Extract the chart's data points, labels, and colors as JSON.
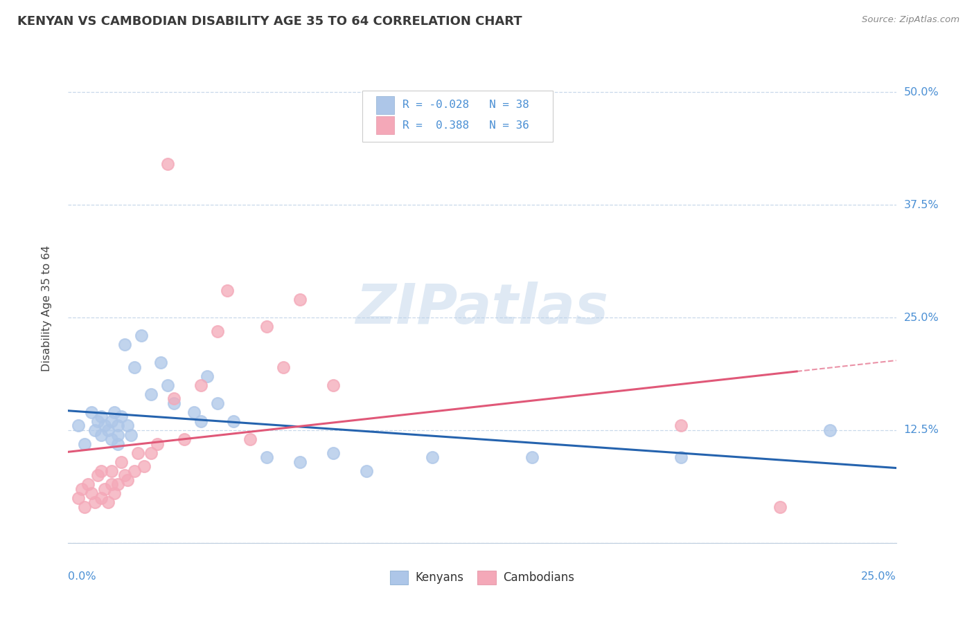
{
  "title": "KENYAN VS CAMBODIAN DISABILITY AGE 35 TO 64 CORRELATION CHART",
  "source": "Source: ZipAtlas.com",
  "ylabel": "Disability Age 35 to 64",
  "xlim": [
    0.0,
    0.25
  ],
  "ylim": [
    0.0,
    0.52
  ],
  "yticks": [
    0.0,
    0.125,
    0.25,
    0.375,
    0.5
  ],
  "ytick_labels": [
    "",
    "12.5%",
    "25.0%",
    "37.5%",
    "50.0%"
  ],
  "kenyan_R": -0.028,
  "kenyan_N": 38,
  "cambodian_R": 0.388,
  "cambodian_N": 36,
  "kenyan_color": "#adc6e8",
  "cambodian_color": "#f4a8b8",
  "kenyan_line_color": "#2563ae",
  "cambodian_line_color": "#e05878",
  "background_color": "#ffffff",
  "grid_color": "#c8d8ea",
  "title_color": "#3a3a3a",
  "axis_label_color": "#4a8fd4",
  "watermark": "ZIPatlas",
  "kenyan_x": [
    0.003,
    0.005,
    0.007,
    0.008,
    0.009,
    0.01,
    0.01,
    0.011,
    0.012,
    0.013,
    0.013,
    0.014,
    0.015,
    0.015,
    0.015,
    0.016,
    0.017,
    0.018,
    0.019,
    0.02,
    0.022,
    0.025,
    0.028,
    0.03,
    0.032,
    0.038,
    0.04,
    0.042,
    0.045,
    0.05,
    0.06,
    0.07,
    0.08,
    0.09,
    0.11,
    0.14,
    0.185,
    0.23
  ],
  "kenyan_y": [
    0.13,
    0.11,
    0.145,
    0.125,
    0.135,
    0.12,
    0.14,
    0.13,
    0.125,
    0.115,
    0.135,
    0.145,
    0.11,
    0.12,
    0.13,
    0.14,
    0.22,
    0.13,
    0.12,
    0.195,
    0.23,
    0.165,
    0.2,
    0.175,
    0.155,
    0.145,
    0.135,
    0.185,
    0.155,
    0.135,
    0.095,
    0.09,
    0.1,
    0.08,
    0.095,
    0.095,
    0.095,
    0.125
  ],
  "cambodian_x": [
    0.003,
    0.004,
    0.005,
    0.006,
    0.007,
    0.008,
    0.009,
    0.01,
    0.01,
    0.011,
    0.012,
    0.013,
    0.013,
    0.014,
    0.015,
    0.016,
    0.017,
    0.018,
    0.02,
    0.021,
    0.023,
    0.025,
    0.027,
    0.03,
    0.032,
    0.035,
    0.04,
    0.045,
    0.048,
    0.055,
    0.06,
    0.065,
    0.07,
    0.08,
    0.185,
    0.215
  ],
  "cambodian_y": [
    0.05,
    0.06,
    0.04,
    0.065,
    0.055,
    0.045,
    0.075,
    0.05,
    0.08,
    0.06,
    0.045,
    0.065,
    0.08,
    0.055,
    0.065,
    0.09,
    0.075,
    0.07,
    0.08,
    0.1,
    0.085,
    0.1,
    0.11,
    0.42,
    0.16,
    0.115,
    0.175,
    0.235,
    0.28,
    0.115,
    0.24,
    0.195,
    0.27,
    0.175,
    0.13,
    0.04
  ]
}
